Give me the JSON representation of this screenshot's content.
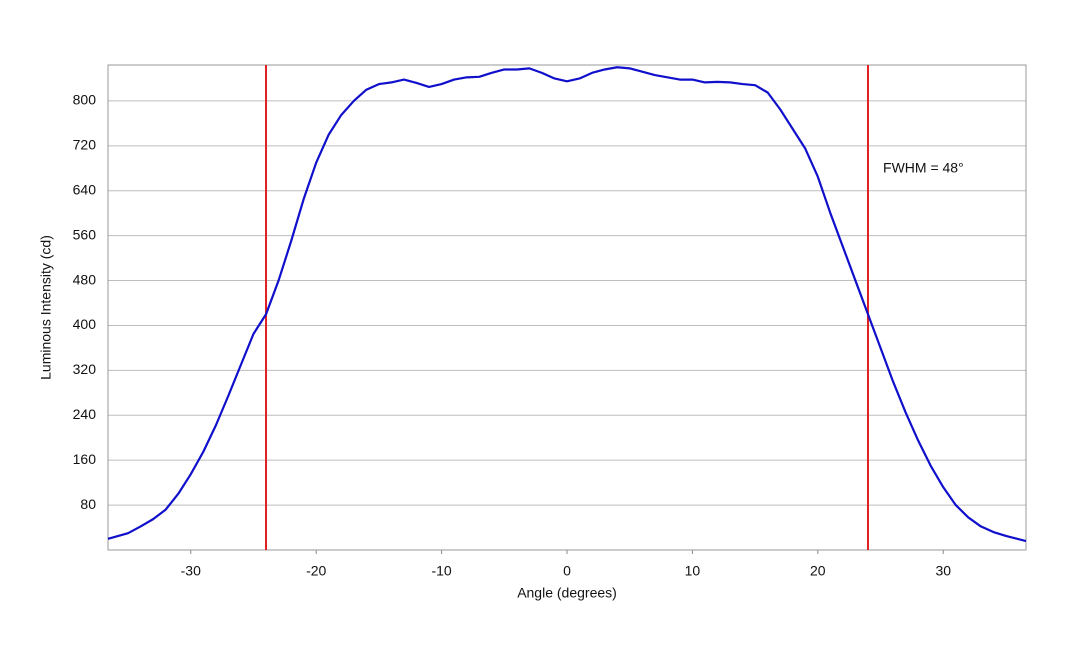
{
  "chart_data": {
    "type": "line",
    "x_label": "Angle (degrees)",
    "y_label": "Luminous Intensity (cd)",
    "x": [
      -36.6,
      -35,
      -34,
      -33,
      -32,
      -31,
      -30,
      -29,
      -28,
      -27,
      -26,
      -25,
      -24,
      -23,
      -22,
      -21,
      -20,
      -19,
      -18,
      -17,
      -16,
      -15,
      -14,
      -13,
      -12,
      -11,
      -10,
      -9,
      -8,
      -7,
      -6,
      -5,
      -4,
      -3,
      -2,
      -1,
      0,
      1,
      2,
      3,
      4,
      5,
      6,
      7,
      8,
      9,
      10,
      11,
      12,
      13,
      14,
      15,
      16,
      17,
      18,
      19,
      20,
      21,
      22,
      23,
      24,
      25,
      26,
      27,
      28,
      29,
      30,
      31,
      32,
      33,
      34,
      35,
      36.6
    ],
    "series": [
      {
        "color": "#1010cc",
        "values": [
          20,
          30,
          42,
          55,
          72,
          100,
          135,
          175,
          222,
          275,
          330,
          385,
          420,
          480,
          550,
          625,
          690,
          740,
          775,
          800,
          820,
          830,
          833,
          838,
          832,
          825,
          830,
          838,
          842,
          843,
          850,
          856,
          856,
          858,
          850,
          840,
          835,
          840,
          850,
          856,
          860,
          858,
          852,
          846,
          842,
          838,
          838,
          833,
          834,
          833,
          830,
          828,
          815,
          785,
          750,
          715,
          665,
          600,
          540,
          480,
          420,
          360,
          300,
          245,
          195,
          150,
          112,
          80,
          58,
          42,
          32,
          25,
          16
        ]
      }
    ],
    "xlim": [
      -36.6,
      36.6
    ],
    "ylim": [
      0,
      864
    ],
    "xticks": [
      -30,
      -20,
      -10,
      0,
      10,
      20,
      30
    ],
    "yticks": [
      80,
      160,
      240,
      320,
      400,
      480,
      560,
      640,
      720,
      800
    ],
    "grid": true,
    "vlines": [
      {
        "x": -24,
        "color": "#e02020"
      },
      {
        "x": 24,
        "color": "#e02020"
      }
    ],
    "annotation": {
      "text": "FWHM = 48°",
      "x": 25.2,
      "y": 679
    }
  }
}
